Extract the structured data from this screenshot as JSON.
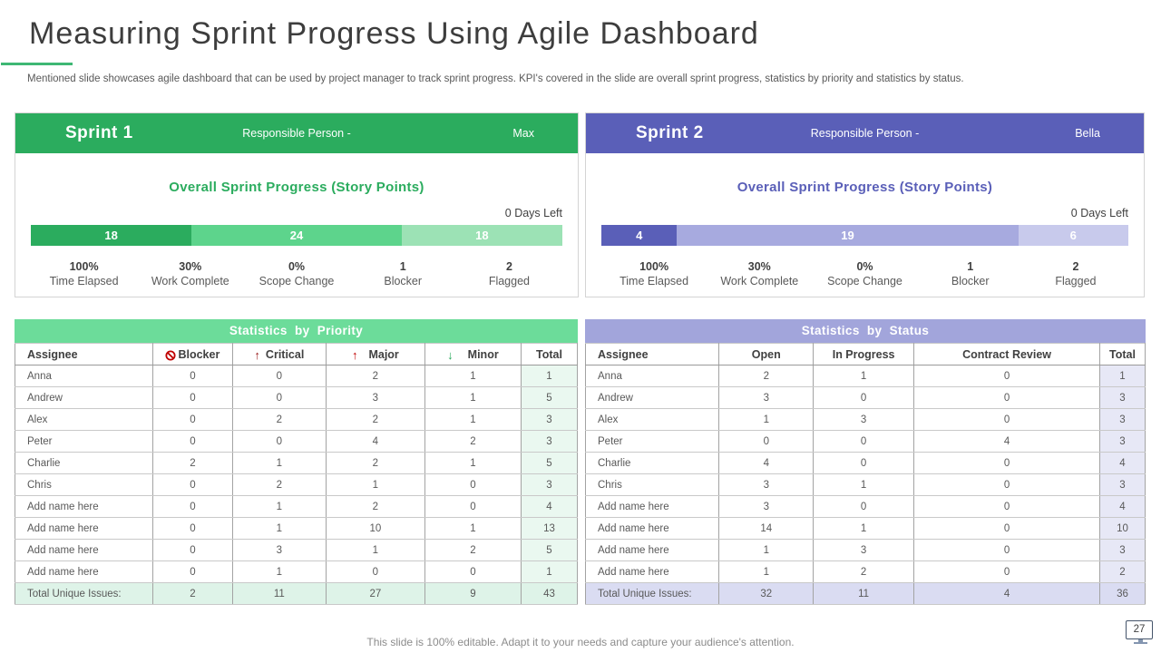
{
  "slide": {
    "title": "Measuring Sprint Progress Using Agile Dashboard",
    "subtitle": "Mentioned slide showcases agile dashboard that can be used by project manager to track sprint progress. KPI's covered in the slide are overall sprint progress, statistics by priority and statistics by status.",
    "footer": "This slide is 100% editable. Adapt it to your needs and capture your audience's attention.",
    "page_number": "27"
  },
  "colors": {
    "green_dark": "#2bac5e",
    "green_mid": "#5dd48c",
    "green_light": "#9ce2b5",
    "green_title": "#6cdc9a",
    "green_total_col": "#eaf8f0",
    "green_total_row": "#def3e8",
    "purple_dark": "#5a5fb8",
    "purple_mid": "#a7aadf",
    "purple_light": "#c8caec",
    "purple_title": "#a2a5db",
    "purple_total_col": "#e7e8f6",
    "purple_total_row": "#dadcf2",
    "blocker_red": "#c00000",
    "critical_red": "#9b2020",
    "major_red": "#c00000",
    "minor_green": "#27a85a",
    "underline_green": "#3eb874"
  },
  "sprints": [
    {
      "name": "Sprint 1",
      "responsible_label": "Responsible Person -",
      "responsible_name": "Max",
      "progress_title": "Overall Sprint Progress (Story Points)",
      "days_left": "0 Days Left",
      "bar": [
        18,
        24,
        18
      ],
      "stats": [
        {
          "value": "100%",
          "label": "Time Elapsed"
        },
        {
          "value": "30%",
          "label": "Work Complete"
        },
        {
          "value": "0%",
          "label": "Scope Change"
        },
        {
          "value": "1",
          "label": "Blocker"
        },
        {
          "value": "2",
          "label": "Flagged"
        }
      ]
    },
    {
      "name": "Sprint 2",
      "responsible_label": "Responsible Person -",
      "responsible_name": "Bella",
      "progress_title": "Overall Sprint Progress (Story Points)",
      "days_left": "0 Days Left",
      "bar": [
        4,
        19,
        6
      ],
      "stats": [
        {
          "value": "100%",
          "label": "Time Elapsed"
        },
        {
          "value": "30%",
          "label": "Work Complete"
        },
        {
          "value": "0%",
          "label": "Scope Change"
        },
        {
          "value": "1",
          "label": "Blocker"
        },
        {
          "value": "2",
          "label": "Flagged"
        }
      ]
    }
  ],
  "priority_table": {
    "title": "Statistics by Priority",
    "columns": [
      {
        "label": "Assignee"
      },
      {
        "label": "Blocker",
        "icon": "blocker-icon"
      },
      {
        "label": "Critical",
        "icon": "critical-icon",
        "glyph": "↑"
      },
      {
        "label": "Major",
        "icon": "major-icon",
        "glyph": "↑"
      },
      {
        "label": "Minor",
        "icon": "minor-icon",
        "glyph": "↓"
      },
      {
        "label": "Total"
      }
    ],
    "rows": [
      [
        "Anna",
        0,
        0,
        2,
        1,
        1
      ],
      [
        "Andrew",
        0,
        0,
        3,
        1,
        5
      ],
      [
        "Alex",
        0,
        2,
        2,
        1,
        3
      ],
      [
        "Peter",
        0,
        0,
        4,
        2,
        3
      ],
      [
        "Charlie",
        2,
        1,
        2,
        1,
        5
      ],
      [
        "Chris",
        0,
        2,
        1,
        0,
        3
      ],
      [
        "Add name here",
        0,
        1,
        2,
        0,
        4
      ],
      [
        "Add name here",
        0,
        1,
        10,
        1,
        13
      ],
      [
        "Add name here",
        0,
        3,
        1,
        2,
        5
      ],
      [
        "Add name here",
        0,
        1,
        0,
        0,
        1
      ]
    ],
    "total_row": [
      "Total Unique Issues:",
      2,
      11,
      27,
      9,
      43
    ]
  },
  "status_table": {
    "title": "Statistics by Status",
    "columns": [
      {
        "label": "Assignee"
      },
      {
        "label": "Open"
      },
      {
        "label": "In Progress"
      },
      {
        "label": "Contract Review"
      },
      {
        "label": "Total"
      }
    ],
    "rows": [
      [
        "Anna",
        2,
        1,
        0,
        1
      ],
      [
        "Andrew",
        3,
        0,
        0,
        3
      ],
      [
        "Alex",
        1,
        3,
        0,
        3
      ],
      [
        "Peter",
        0,
        0,
        4,
        3
      ],
      [
        "Charlie",
        4,
        0,
        0,
        4
      ],
      [
        "Chris",
        3,
        1,
        0,
        3
      ],
      [
        "Add name here",
        3,
        0,
        0,
        4
      ],
      [
        "Add name here",
        14,
        1,
        0,
        10
      ],
      [
        "Add name here",
        1,
        3,
        0,
        3
      ],
      [
        "Add name here",
        1,
        2,
        0,
        2
      ]
    ],
    "total_row": [
      "Total Unique Issues:",
      32,
      11,
      4,
      36
    ]
  }
}
